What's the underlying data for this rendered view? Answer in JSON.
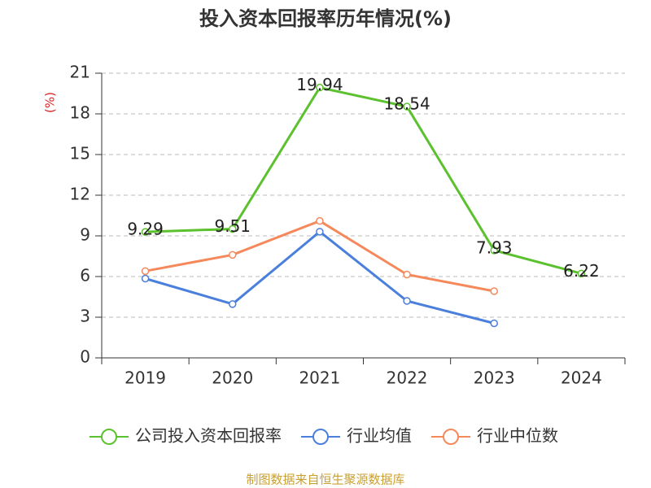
{
  "chart_data": {
    "type": "line",
    "title": "投入资本回报率历年情况(%)",
    "y_label": "(%)",
    "categories": [
      "2019",
      "2020",
      "2021",
      "2022",
      "2023",
      "2024"
    ],
    "series": [
      {
        "name": "公司投入资本回报率",
        "color": "#5cc12e",
        "values": [
          9.29,
          9.51,
          19.94,
          18.54,
          7.93,
          6.22
        ],
        "data_labels": true
      },
      {
        "name": "行业均值",
        "color": "#4a7fdc",
        "values": [
          5.85,
          3.97,
          9.31,
          4.2,
          2.55,
          null
        ],
        "data_labels": false
      },
      {
        "name": "行业中位数",
        "color": "#f5895b",
        "values": [
          6.4,
          7.6,
          10.1,
          6.15,
          4.92,
          null
        ],
        "data_labels": false
      }
    ],
    "ylim": [
      0,
      21
    ],
    "yticks": [
      0,
      3,
      6,
      9,
      12,
      15,
      18,
      21
    ],
    "grid": true,
    "source": "制图数据来自恒生聚源数据库"
  }
}
